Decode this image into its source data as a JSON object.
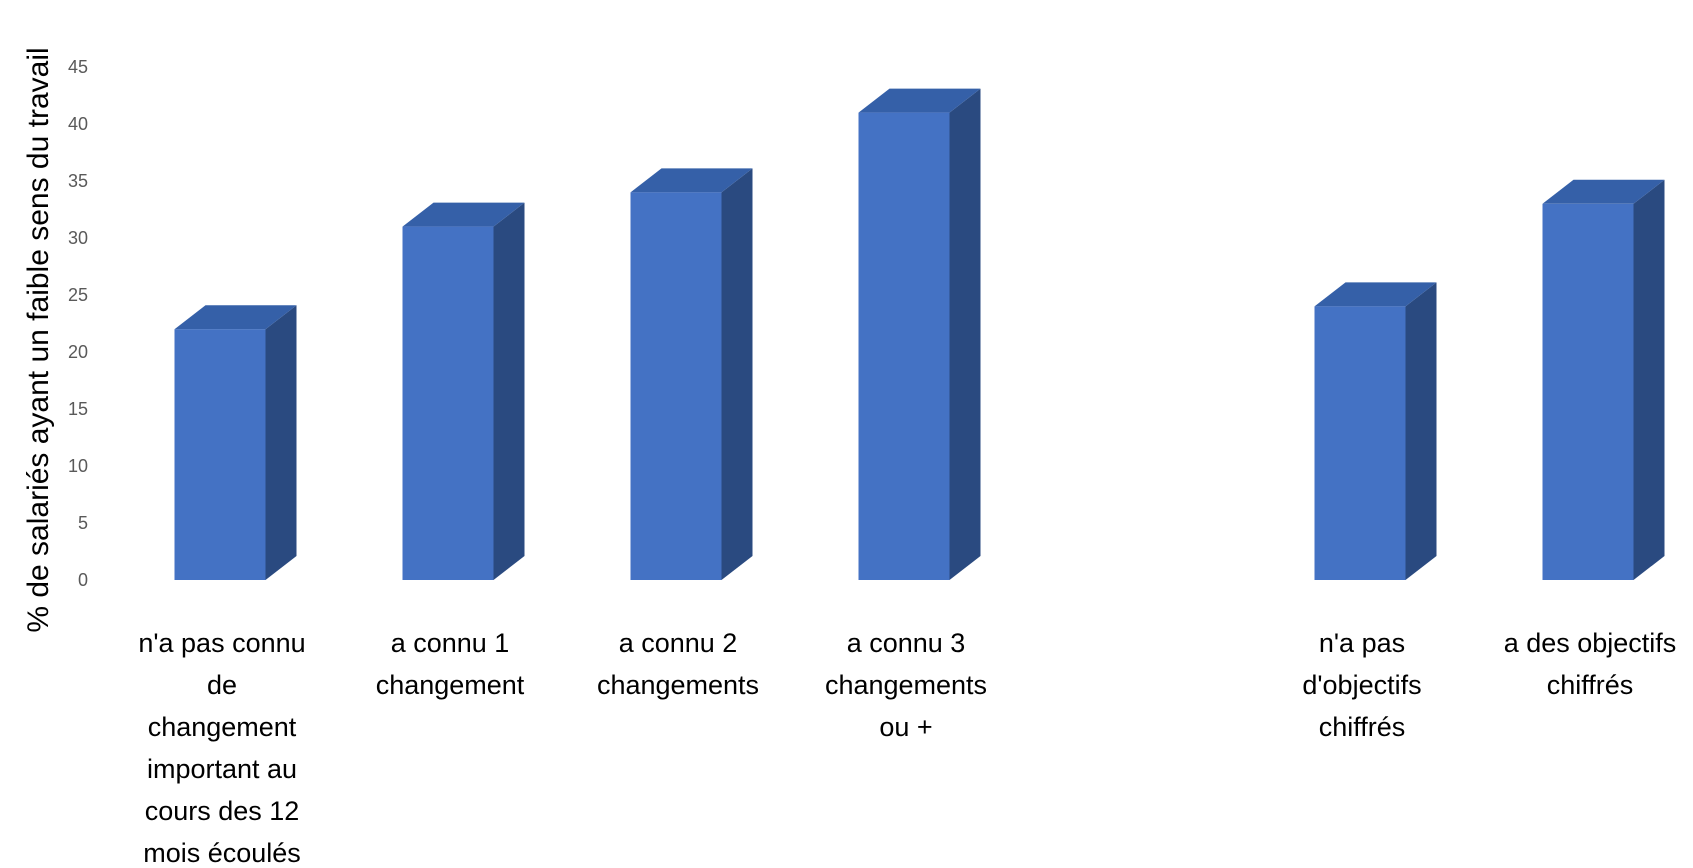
{
  "chart_data": {
    "type": "bar",
    "ylabel": "% de salariés ayant un faible sens du travail",
    "ylim": [
      0,
      45
    ],
    "yticks": [
      0,
      5,
      10,
      15,
      20,
      25,
      30,
      35,
      40,
      45
    ],
    "grid": false,
    "style": "3d-column",
    "colors": {
      "front": "#4472C4",
      "side": "#2A4A80",
      "top": "#3560A8"
    },
    "categories": [
      [
        "n'a pas connu",
        "de",
        "changement",
        "important au",
        "cours des 12",
        "mois écoulés"
      ],
      [
        "a connu 1",
        "changement"
      ],
      [
        "a connu 2",
        "changements"
      ],
      [
        "a connu 3",
        "changements",
        "ou +"
      ],
      [],
      [
        "n'a pas",
        "d'objectifs",
        "chiffrés"
      ],
      [
        "a des objectifs",
        "chiffrés"
      ]
    ],
    "values": [
      22,
      31,
      34,
      41,
      null,
      24,
      33
    ]
  }
}
